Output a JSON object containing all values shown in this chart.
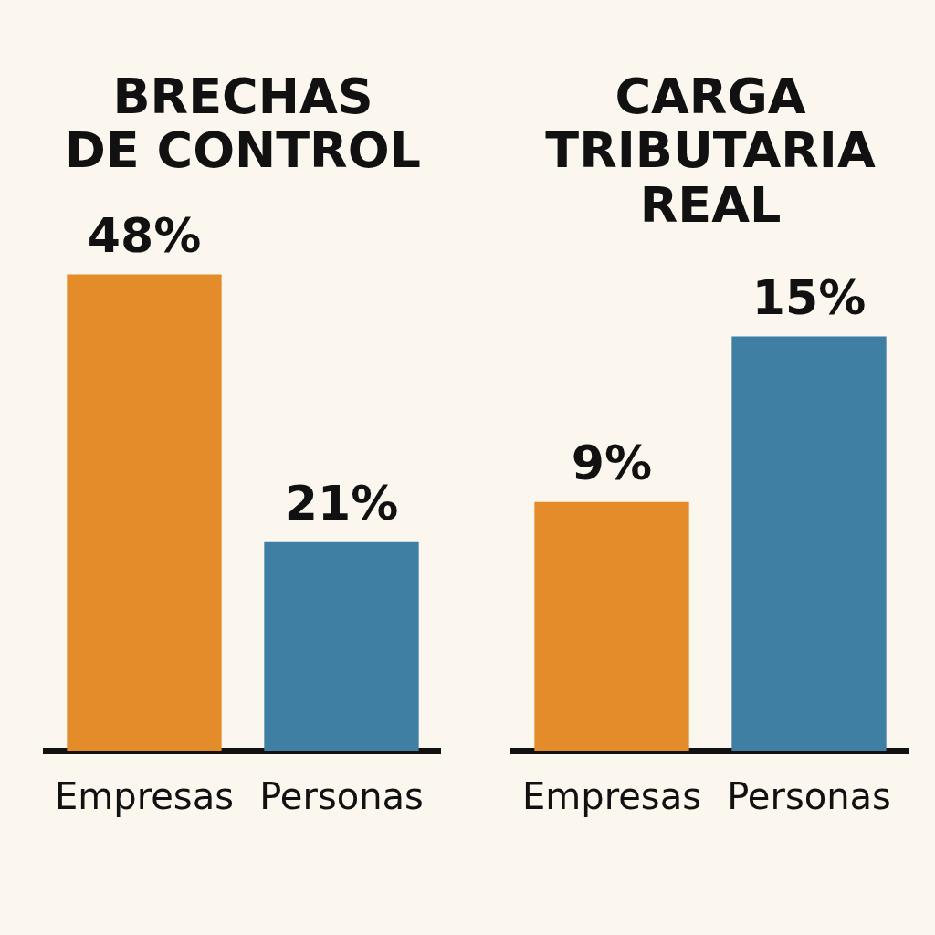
{
  "chart_data": [
    {
      "type": "bar",
      "title": "BRECHAS\nDE CONTROL",
      "categories": [
        "Empresas",
        "Personas"
      ],
      "values": [
        48,
        21
      ],
      "value_labels": [
        "48%",
        "21%"
      ],
      "colors": [
        "#e58c2a",
        "#3f7fa3"
      ],
      "tick_labels": "x",
      "legend": false,
      "grid": false
    },
    {
      "type": "bar",
      "title": "CARGA\nTRIBUTARIA\nREAL",
      "categories": [
        "Empresas",
        "Personas"
      ],
      "values": [
        9,
        15
      ],
      "value_labels": [
        "9%",
        "15%"
      ],
      "colors": [
        "#e58c2a",
        "#3f7fa3"
      ],
      "tick_labels": "x",
      "legend": false,
      "grid": false
    }
  ]
}
